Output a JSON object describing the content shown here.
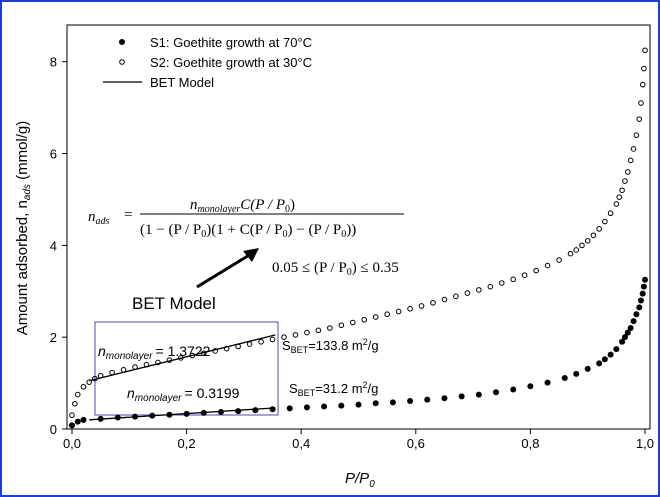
{
  "chart_data": {
    "type": "scatter",
    "xlabel": "P/P0",
    "ylabel": "Amount adsorbed, n_ads (mmol/g)",
    "xlim": [
      0,
      1
    ],
    "ylim": [
      0,
      8.8
    ],
    "xticks": [
      "0,0",
      "0,2",
      "0,4",
      "0,6",
      "0,8",
      "1,0"
    ],
    "yticks": [
      "0",
      "2",
      "4",
      "6",
      "8"
    ],
    "grid": false,
    "legend_position": "top-left",
    "legend": [
      {
        "marker": "filled-circle",
        "label": "S1: Goethite growth at 70°C"
      },
      {
        "marker": "open-circle",
        "label": "S2: Goethite growth at 30°C"
      },
      {
        "marker": "line",
        "label": "BET Model"
      }
    ],
    "series": [
      {
        "name": "S1: Goethite growth at 70°C",
        "marker": "filled",
        "x": [
          0.0,
          0.01,
          0.02,
          0.05,
          0.08,
          0.11,
          0.14,
          0.17,
          0.2,
          0.23,
          0.26,
          0.29,
          0.32,
          0.35,
          0.38,
          0.41,
          0.44,
          0.47,
          0.5,
          0.53,
          0.56,
          0.59,
          0.62,
          0.65,
          0.68,
          0.71,
          0.74,
          0.77,
          0.8,
          0.83,
          0.86,
          0.88,
          0.9,
          0.92,
          0.93,
          0.94,
          0.95,
          0.96,
          0.965,
          0.97,
          0.975,
          0.98,
          0.985,
          0.99,
          0.993,
          0.996,
          0.998,
          1.0
        ],
        "y": [
          0.08,
          0.16,
          0.2,
          0.22,
          0.25,
          0.27,
          0.29,
          0.31,
          0.33,
          0.35,
          0.37,
          0.39,
          0.41,
          0.43,
          0.45,
          0.47,
          0.49,
          0.51,
          0.53,
          0.56,
          0.58,
          0.61,
          0.64,
          0.67,
          0.71,
          0.75,
          0.8,
          0.86,
          0.93,
          1.01,
          1.11,
          1.2,
          1.31,
          1.43,
          1.52,
          1.62,
          1.74,
          1.9,
          2.0,
          2.1,
          2.2,
          2.35,
          2.5,
          2.65,
          2.8,
          2.95,
          3.1,
          3.25
        ]
      },
      {
        "name": "S2: Goethite growth at 30°C",
        "marker": "open",
        "x": [
          0.0,
          0.005,
          0.01,
          0.02,
          0.03,
          0.04,
          0.05,
          0.07,
          0.09,
          0.11,
          0.13,
          0.15,
          0.17,
          0.19,
          0.21,
          0.23,
          0.25,
          0.27,
          0.29,
          0.31,
          0.33,
          0.35,
          0.37,
          0.39,
          0.41,
          0.43,
          0.45,
          0.47,
          0.49,
          0.51,
          0.53,
          0.55,
          0.57,
          0.59,
          0.61,
          0.63,
          0.65,
          0.67,
          0.69,
          0.71,
          0.73,
          0.75,
          0.77,
          0.79,
          0.81,
          0.83,
          0.85,
          0.87,
          0.88,
          0.89,
          0.9,
          0.91,
          0.92,
          0.93,
          0.94,
          0.95,
          0.955,
          0.96,
          0.965,
          0.97,
          0.975,
          0.98,
          0.985,
          0.99,
          0.993,
          0.996,
          0.998,
          1.0
        ],
        "y": [
          0.3,
          0.55,
          0.75,
          0.92,
          1.02,
          1.1,
          1.16,
          1.23,
          1.29,
          1.35,
          1.4,
          1.45,
          1.5,
          1.55,
          1.6,
          1.65,
          1.7,
          1.75,
          1.8,
          1.85,
          1.9,
          1.95,
          2.0,
          2.05,
          2.1,
          2.15,
          2.2,
          2.26,
          2.32,
          2.38,
          2.44,
          2.5,
          2.56,
          2.62,
          2.68,
          2.75,
          2.82,
          2.89,
          2.96,
          3.03,
          3.1,
          3.18,
          3.26,
          3.35,
          3.45,
          3.56,
          3.68,
          3.82,
          3.9,
          4.0,
          4.1,
          4.22,
          4.36,
          4.52,
          4.7,
          4.9,
          5.05,
          5.2,
          5.4,
          5.6,
          5.85,
          6.1,
          6.4,
          6.75,
          7.1,
          7.5,
          7.85,
          8.25
        ]
      },
      {
        "name": "BET Model",
        "marker": "line",
        "x": [
          0.03,
          0.355
        ],
        "y": [
          1.05,
          2.05
        ]
      },
      {
        "name": "BET Model",
        "marker": "line",
        "x": [
          0.03,
          0.355
        ],
        "y": [
          0.2,
          0.46
        ]
      }
    ],
    "annotations": {
      "equation_lhs": "n",
      "equation_lhs_sub": "ads",
      "equation_eq": "=",
      "eq_num_n": "n",
      "eq_num_sub": "monolayer",
      "eq_num_rest": "C(P / P",
      "eq_num_end": ")",
      "eq_den": "(1 − (P / P",
      "eq_den_mid": ")(1 + C(P / P",
      "eq_den_mid2": ") − (P / P",
      "eq_den_end": "))",
      "eq_sub0": "0",
      "range_left": "0.05 ≤ (P / P",
      "range_right": ") ≤ 0.35",
      "bet_model_label": "BET Model",
      "s2_mono_prefix": "n",
      "s2_mono_sub": "monolayer",
      "s2_mono_value": "= 1.3722",
      "s1_mono_prefix": "n",
      "s1_mono_sub": "monolayer",
      "s1_mono_value": "= 0.3199",
      "s2_sbet_prefix": "S",
      "s2_sbet_sub": "BET",
      "s2_sbet_value": "=133.8 m",
      "s2_sbet_sup": "2",
      "s2_sbet_unit": "/g",
      "s1_sbet_prefix": "S",
      "s1_sbet_sub": "BET",
      "s1_sbet_value": "=31.2 m",
      "s1_sbet_sup": "2",
      "s1_sbet_unit": "/g",
      "ylabel_main": "Amount adsorbed, n",
      "ylabel_sub": "ads",
      "ylabel_unit": " (mmol/g)",
      "xlabel_main": "P/P",
      "xlabel_sub": "0"
    },
    "highlight_box_color": "#4a4ab0",
    "frame_color": "#1a3fd6"
  }
}
